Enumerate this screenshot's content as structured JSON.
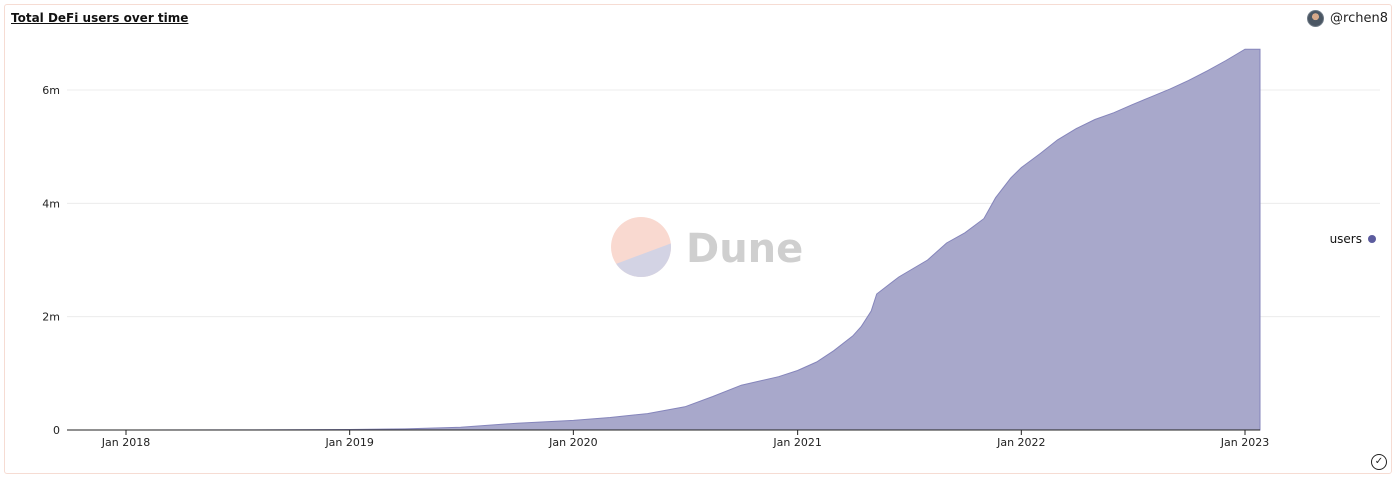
{
  "header": {
    "title": "Total DeFi users over time",
    "author": "@rchen8"
  },
  "watermark": {
    "text": "Dune"
  },
  "colors": {
    "area": "#a8a8cb",
    "line": "#8585bb",
    "legend_dot": "#5c5c9e",
    "watermark_top": "#f9d9d0",
    "watermark_bottom": "#d3d3e4",
    "grid": "#ececec"
  },
  "icons": {
    "avatar": "user-avatar-icon",
    "verified": "check-circle-icon"
  },
  "chart_data": {
    "type": "area",
    "title": "Total DeFi users over time",
    "xlabel": "",
    "ylabel": "",
    "x_ticks": [
      {
        "value": "2018-01-01",
        "label": "Jan 2018"
      },
      {
        "value": "2019-01-01",
        "label": "Jan 2019"
      },
      {
        "value": "2020-01-01",
        "label": "Jan 2020"
      },
      {
        "value": "2021-01-01",
        "label": "Jan 2021"
      },
      {
        "value": "2022-01-01",
        "label": "Jan 2022"
      },
      {
        "value": "2023-01-01",
        "label": "Jan 2023"
      }
    ],
    "y_ticks": [
      {
        "value": 0,
        "label": "0"
      },
      {
        "value": 2000000,
        "label": "2m"
      },
      {
        "value": 4000000,
        "label": "4m"
      },
      {
        "value": 6000000,
        "label": "6m"
      }
    ],
    "xlim": [
      "2017-10-01",
      "2023-01-01"
    ],
    "ylim": [
      0,
      6000000
    ],
    "grid": true,
    "legend_position": "right",
    "series": [
      {
        "name": "users",
        "x": [
          "2017-10-01",
          "2018-01-01",
          "2018-07-01",
          "2019-01-01",
          "2019-04-01",
          "2019-07-01",
          "2019-10-01",
          "2020-01-01",
          "2020-03-01",
          "2020-05-01",
          "2020-07-01",
          "2020-08-15",
          "2020-10-01",
          "2020-12-01",
          "2021-01-01",
          "2021-02-01",
          "2021-03-01",
          "2021-04-01",
          "2021-04-15",
          "2021-05-01",
          "2021-05-10",
          "2021-06-15",
          "2021-08-01",
          "2021-09-01",
          "2021-10-01",
          "2021-11-01",
          "2021-11-20",
          "2021-12-15",
          "2022-01-01",
          "2022-02-01",
          "2022-03-01",
          "2022-04-01",
          "2022-05-01",
          "2022-06-01",
          "2022-07-01",
          "2022-08-01",
          "2022-09-01",
          "2022-10-01",
          "2022-11-01",
          "2022-12-01",
          "2023-01-01"
        ],
        "values": [
          0,
          0,
          2000,
          8000,
          20000,
          50000,
          120000,
          170000,
          220000,
          290000,
          410000,
          590000,
          790000,
          940000,
          1050000,
          1200000,
          1400000,
          1660000,
          1830000,
          2100000,
          2400000,
          2700000,
          3000000,
          3300000,
          3480000,
          3730000,
          4100000,
          4450000,
          4630000,
          4880000,
          5120000,
          5320000,
          5480000,
          5600000,
          5740000,
          5880000,
          6020000,
          6170000,
          6340000,
          6520000,
          6720000
        ]
      }
    ]
  }
}
